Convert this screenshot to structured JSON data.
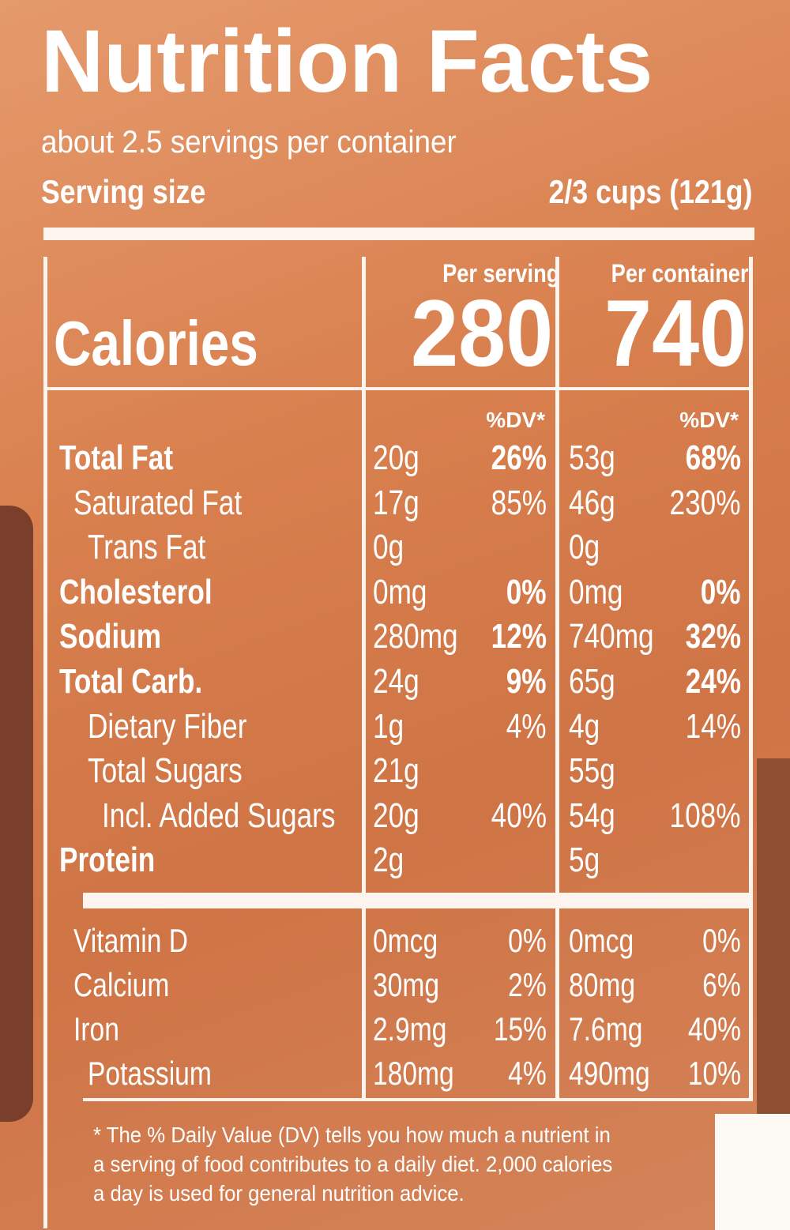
{
  "header": {
    "title": "Nutrition Facts",
    "servings": "about 2.5 servings per container",
    "serving_size_label": "Serving size",
    "serving_size_value": "2/3 cups (121g)"
  },
  "columns": {
    "per_serving": "Per serving",
    "per_container": "Per container"
  },
  "calories": {
    "label": "Calories",
    "per_serving": "280",
    "per_container": "740"
  },
  "dv_header": [
    "%DV*",
    "%DV*"
  ],
  "nutrients": [
    {
      "label": "Total Fat",
      "bold": true,
      "indent": 0,
      "serving_amount": "20g",
      "serving_dv": "26%",
      "container_amount": "53g",
      "container_dv": "68%"
    },
    {
      "label": "Saturated Fat",
      "bold": false,
      "indent": 1,
      "serving_amount": "17g",
      "serving_dv": "85%",
      "container_amount": "46g",
      "container_dv": "230%"
    },
    {
      "label": "Trans Fat",
      "bold": false,
      "indent": 2,
      "serving_amount": "0g",
      "serving_dv": null,
      "container_amount": "0g",
      "container_dv": null
    },
    {
      "label": "Cholesterol",
      "bold": true,
      "indent": 0,
      "serving_amount": "0mg",
      "serving_dv": "0%",
      "container_amount": "0mg",
      "container_dv": "0%"
    },
    {
      "label": "Sodium",
      "bold": true,
      "indent": 0,
      "serving_amount": "280mg",
      "serving_dv": "12%",
      "container_amount": "740mg",
      "container_dv": "32%"
    },
    {
      "label": "Total Carb.",
      "bold": true,
      "indent": 0,
      "serving_amount": "24g",
      "serving_dv": "9%",
      "container_amount": "65g",
      "container_dv": "24%"
    },
    {
      "label": "Dietary Fiber",
      "bold": false,
      "indent": 2,
      "serving_amount": "1g",
      "serving_dv": "4%",
      "container_amount": "4g",
      "container_dv": "14%"
    },
    {
      "label": "Total Sugars",
      "bold": false,
      "indent": 2,
      "serving_amount": "21g",
      "serving_dv": null,
      "container_amount": "55g",
      "container_dv": null
    },
    {
      "label": "Incl. Added Sugars",
      "bold": false,
      "indent": 3,
      "serving_amount": "20g",
      "serving_dv": "40%",
      "container_amount": "54g",
      "container_dv": "108%"
    },
    {
      "label": "Protein",
      "bold": true,
      "indent": 0,
      "serving_amount": "2g",
      "serving_dv": null,
      "container_amount": "5g",
      "container_dv": null
    }
  ],
  "vitamins": [
    {
      "label": "Vitamin D",
      "serving_amount": "0mcg",
      "serving_dv": "0%",
      "container_amount": "0mcg",
      "container_dv": "0%"
    },
    {
      "label": "Calcium",
      "serving_amount": "30mg",
      "serving_dv": "2%",
      "container_amount": "80mg",
      "container_dv": "6%"
    },
    {
      "label": "Iron",
      "serving_amount": "2.9mg",
      "serving_dv": "15%",
      "container_amount": "7.6mg",
      "container_dv": "40%"
    },
    {
      "label": "Potassium",
      "serving_amount": "180mg",
      "serving_dv": "4%",
      "container_amount": "490mg",
      "container_dv": "10%"
    }
  ],
  "footnote": "* The % Daily Value (DV) tells you how much a nutrient in a serving of food contributes to a daily diet. 2,000 calories a day is used for general nutrition advice."
}
